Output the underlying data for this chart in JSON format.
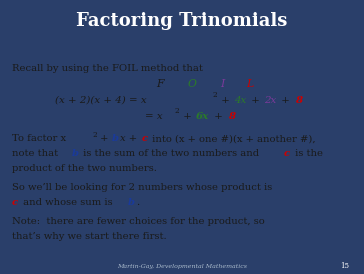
{
  "title": "Factoring Trinomials",
  "title_bg_top": "#3A5A8A",
  "title_bg_bot": "#1E3060",
  "title_text_color": "#FFFFFF",
  "body_bg_color": "#E0DDD0",
  "dark_red": "#8B1A1A",
  "footer_bg_color": "#2A3F6A",
  "footer_text": "Martin-Gay, Developmental Mathematics",
  "footer_page": "15",
  "black": "#1a1a1a",
  "blue_b": "#1a3a9a",
  "red_c": "#CC0000",
  "green_o": "#2a7a2a",
  "purple_i": "#7a3a9a",
  "figsize": [
    3.64,
    2.74
  ],
  "dpi": 100
}
